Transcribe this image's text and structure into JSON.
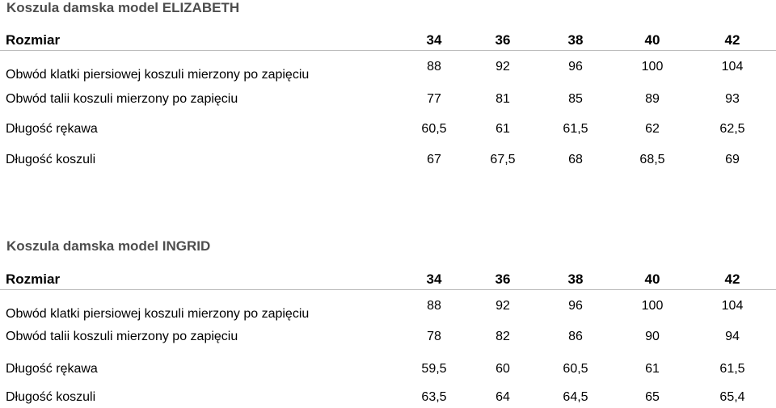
{
  "tables": [
    {
      "title": "Koszula damska model ELIZABETH",
      "header": {
        "label": "Rozmiar",
        "sizes": [
          "34",
          "36",
          "38",
          "40",
          "42"
        ]
      },
      "rows": [
        {
          "label": "Obwód klatki piersiowej koszuli mierzony po zapięciu",
          "values": [
            "88",
            "92",
            "96",
            "100",
            "104"
          ]
        },
        {
          "label": "Obwód talii koszuli mierzony po zapięciu",
          "values": [
            "77",
            "81",
            "85",
            "89",
            "93"
          ]
        },
        {
          "label": "Długość rękawa",
          "values": [
            "60,5",
            "61",
            "61,5",
            "62",
            "62,5"
          ]
        },
        {
          "label": "Długość koszuli",
          "values": [
            "67",
            "67,5",
            "68",
            "68,5",
            "69"
          ]
        }
      ]
    },
    {
      "title": "Koszula damska model INGRID",
      "header": {
        "label": "Rozmiar",
        "sizes": [
          "34",
          "36",
          "38",
          "40",
          "42"
        ]
      },
      "rows": [
        {
          "label": "Obwód klatki piersiowej koszuli mierzony po zapięciu",
          "values": [
            "88",
            "92",
            "96",
            "100",
            "104"
          ]
        },
        {
          "label": "Obwód talii koszuli mierzony po zapięciu",
          "values": [
            "78",
            "82",
            "86",
            "90",
            "94"
          ]
        },
        {
          "label": "Długość rękawa",
          "values": [
            "59,5",
            "60",
            "60,5",
            "61",
            "61,5"
          ]
        },
        {
          "label": "Długość koszuli",
          "values": [
            "63,5",
            "64",
            "64,5",
            "65",
            "65,4"
          ]
        }
      ]
    }
  ]
}
